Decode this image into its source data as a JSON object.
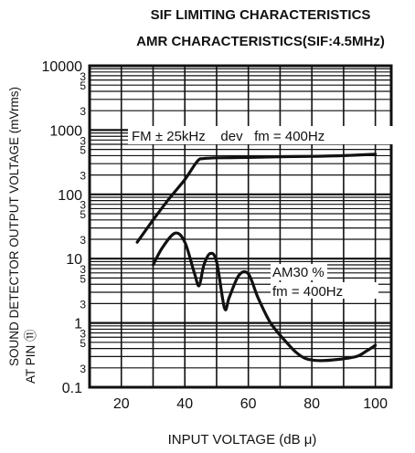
{
  "chart_data": {
    "type": "line",
    "title": "SIF LIMITING CHARACTERISTICS",
    "subtitle": "AMR CHARACTERISTICS(SIF:4.5MHz)",
    "xlabel": "INPUT VOLTAGE (dB μ)",
    "ylabel_line1": "SOUND DETECTOR OUTPUT VOLTAGE (mVrms)",
    "ylabel_line2": "AT PIN ⑪",
    "xlim": [
      10,
      105
    ],
    "ylim": [
      0.1,
      10000
    ],
    "yscale": "log",
    "grid": true,
    "x_ticks": [
      20,
      40,
      60,
      80,
      100
    ],
    "x_tick_labels": [
      "20",
      "40",
      "60",
      "80",
      "100"
    ],
    "y_major_ticks": [
      0.1,
      1,
      10,
      100,
      1000,
      10000
    ],
    "y_major_tick_labels": [
      "0.1",
      "1",
      "10",
      "100",
      "1000",
      "10000"
    ],
    "y_minor_tick_labels": [
      "3",
      "5",
      "3"
    ],
    "series": [
      {
        "name": "FM curve",
        "x": [
          25,
          30,
          35,
          40,
          44,
          46,
          50,
          60,
          70,
          80,
          90,
          100
        ],
        "values": [
          18,
          40,
          85,
          170,
          330,
          360,
          370,
          375,
          385,
          390,
          400,
          420
        ]
      },
      {
        "name": "AM curve",
        "x": [
          30,
          33,
          37,
          40,
          43,
          44.5,
          46,
          48,
          50,
          52.5,
          54,
          57,
          60,
          63,
          67,
          72,
          75,
          78,
          82,
          88,
          94,
          97,
          100
        ],
        "values": [
          8,
          15,
          25,
          18,
          6,
          3.8,
          8,
          12,
          9,
          1.7,
          2.5,
          5.5,
          5.8,
          2.5,
          1.0,
          0.5,
          0.35,
          0.28,
          0.26,
          0.27,
          0.3,
          0.36,
          0.45
        ]
      }
    ],
    "annotations": {
      "fm_condition": "FM ± 25kHz    dev   fm = 400Hz",
      "am_depth": "AM30 %",
      "am_fm": "fm = 400Hz"
    }
  }
}
